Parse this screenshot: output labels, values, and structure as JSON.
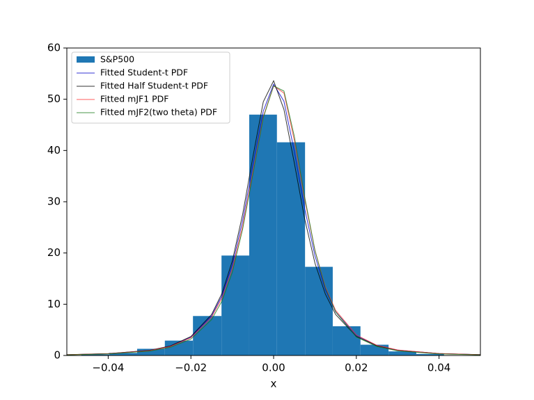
{
  "chart_data": {
    "type": "histogram",
    "x_label": "x",
    "xlim": [
      -0.05,
      0.05
    ],
    "ylim": [
      0,
      60
    ],
    "xticks": [
      {
        "value": -0.04,
        "label": "−0.04"
      },
      {
        "value": -0.02,
        "label": "−0.02"
      },
      {
        "value": 0,
        "label": "0.00"
      },
      {
        "value": 0.02,
        "label": "0.02"
      },
      {
        "value": 0.04,
        "label": "0.04"
      }
    ],
    "yticks": [
      0,
      10,
      20,
      30,
      40,
      50,
      60
    ],
    "legend": "upper left",
    "histogram": {
      "name": "S&P500",
      "color": "#1f77b4",
      "bins": [
        -0.0465,
        -0.0397,
        -0.033,
        -0.0263,
        -0.0195,
        -0.0126,
        -0.0059,
        0.0008,
        0.0076,
        0.0143,
        0.021,
        0.0278,
        0.0345,
        0.0412
      ],
      "values": [
        0.2,
        0.5,
        1.3,
        2.9,
        7.7,
        19.5,
        47,
        41.6,
        17.3,
        5.7,
        2.1,
        0.8,
        0.3
      ]
    },
    "x": [
      -0.05,
      -0.04,
      -0.03,
      -0.025,
      -0.02,
      -0.015,
      -0.0125,
      -0.01,
      -0.0075,
      -0.005,
      -0.0025,
      0,
      0.0025,
      0.005,
      0.0075,
      0.01,
      0.0125,
      0.015,
      0.02,
      0.025,
      0.03,
      0.04,
      0.05
    ],
    "series": [
      {
        "name": "Fitted Student-t PDF",
        "color": "#0000cc",
        "values": [
          0.155,
          0.354,
          0.98,
          1.8,
          3.57,
          7.72,
          11.64,
          17.63,
          26.24,
          37.17,
          47.7,
          52.94,
          49.6,
          39.86,
          28.71,
          19.44,
          12.86,
          8.51,
          3.9,
          1.94,
          1.05,
          0.374,
          0.162
        ]
      },
      {
        "name": "Fitted Half Student-t PDF",
        "color": "#000000",
        "values": [
          0.16,
          0.36,
          1.0,
          1.85,
          3.7,
          8.0,
          12.1,
          18.4,
          27.5,
          38.8,
          49.5,
          53.6,
          48.0,
          37.6,
          26.7,
          18.0,
          12.0,
          8.0,
          3.7,
          1.9,
          1.0,
          0.37,
          0.16
        ]
      },
      {
        "name": "Fitted mJF1 PDF",
        "color": "#ff3333",
        "values": [
          0.15,
          0.34,
          0.95,
          1.75,
          3.45,
          7.45,
          11.2,
          16.9,
          25.2,
          35.9,
          46.6,
          52.6,
          51.2,
          42.0,
          30.5,
          20.5,
          13.4,
          8.8,
          4.0,
          1.98,
          1.07,
          0.38,
          0.16
        ]
      },
      {
        "name": "Fitted mJF2(two theta) PDF",
        "color": "#1a7a1a",
        "values": [
          0.12,
          0.3,
          0.85,
          1.6,
          3.2,
          7.0,
          10.6,
          16.2,
          24.6,
          35.4,
          46.4,
          52.6,
          51.6,
          42.8,
          31.0,
          20.5,
          13.2,
          8.5,
          3.6,
          1.75,
          0.9,
          0.3,
          0.12
        ]
      }
    ]
  }
}
